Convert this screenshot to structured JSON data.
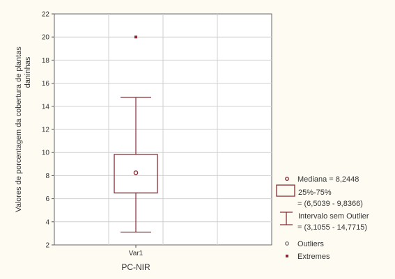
{
  "chart_data": {
    "type": "boxplot",
    "xlabel": "PC-NIR",
    "ylabel_lines": [
      "Valores de porcentagem da cobertura de plantas",
      "daninhas"
    ],
    "ylim": [
      2,
      22
    ],
    "yticks": [
      2,
      4,
      6,
      8,
      10,
      12,
      14,
      16,
      18,
      20,
      22
    ],
    "categories": [
      "Var1"
    ],
    "grid": true,
    "legend_position": "right",
    "box": {
      "median": 8.2448,
      "q1": 6.5039,
      "q3": 9.8366,
      "whisker_low": 3.1055,
      "whisker_high": 14.7715,
      "extremes": [
        20
      ]
    },
    "legend": [
      {
        "marker": "median",
        "lines": [
          "Mediana = 8,2448"
        ]
      },
      {
        "marker": "box",
        "lines": [
          "25%-75%",
          "= (6,5039 - 9,8366)"
        ]
      },
      {
        "marker": "whisker",
        "lines": [
          "Intervalo sem Outlier",
          "= (3,1055 - 14,7715)"
        ]
      },
      {
        "marker": "outlier",
        "lines": [
          "Outliers"
        ]
      },
      {
        "marker": "extreme",
        "lines": [
          "Extremes"
        ]
      }
    ],
    "colors": {
      "series": "#8a2a33",
      "grid": "#cfcfcf",
      "text": "#333333",
      "plot_bg": "#ffffff",
      "page_bg": "#fdfbf2"
    }
  }
}
